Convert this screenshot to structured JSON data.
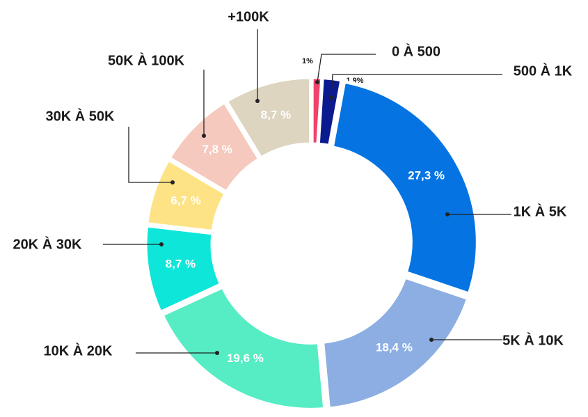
{
  "chart_data": {
    "type": "donut",
    "categories": [
      "0 À 500",
      "500 À 1K",
      "1K À 5K",
      "5K À 10K",
      "10K À 20K",
      "20K À 30K",
      "30K À 50K",
      "50K À 100K",
      "+100K"
    ],
    "values": [
      1,
      1.9,
      27.3,
      18.4,
      19.6,
      8.7,
      6.7,
      7.8,
      8.7
    ],
    "value_labels": [
      "1%",
      "1,9%",
      "27,3 %",
      "18,4 %",
      "19,6 %",
      "8,7 %",
      "6,7 %",
      "7,8 %",
      "8,7 %"
    ],
    "colors": [
      "#f0426a",
      "#0b1a8f",
      "#0574e2",
      "#8caee2",
      "#56ecc4",
      "#0fe6da",
      "#fde386",
      "#f5c9bd",
      "#ddd5c0"
    ]
  }
}
